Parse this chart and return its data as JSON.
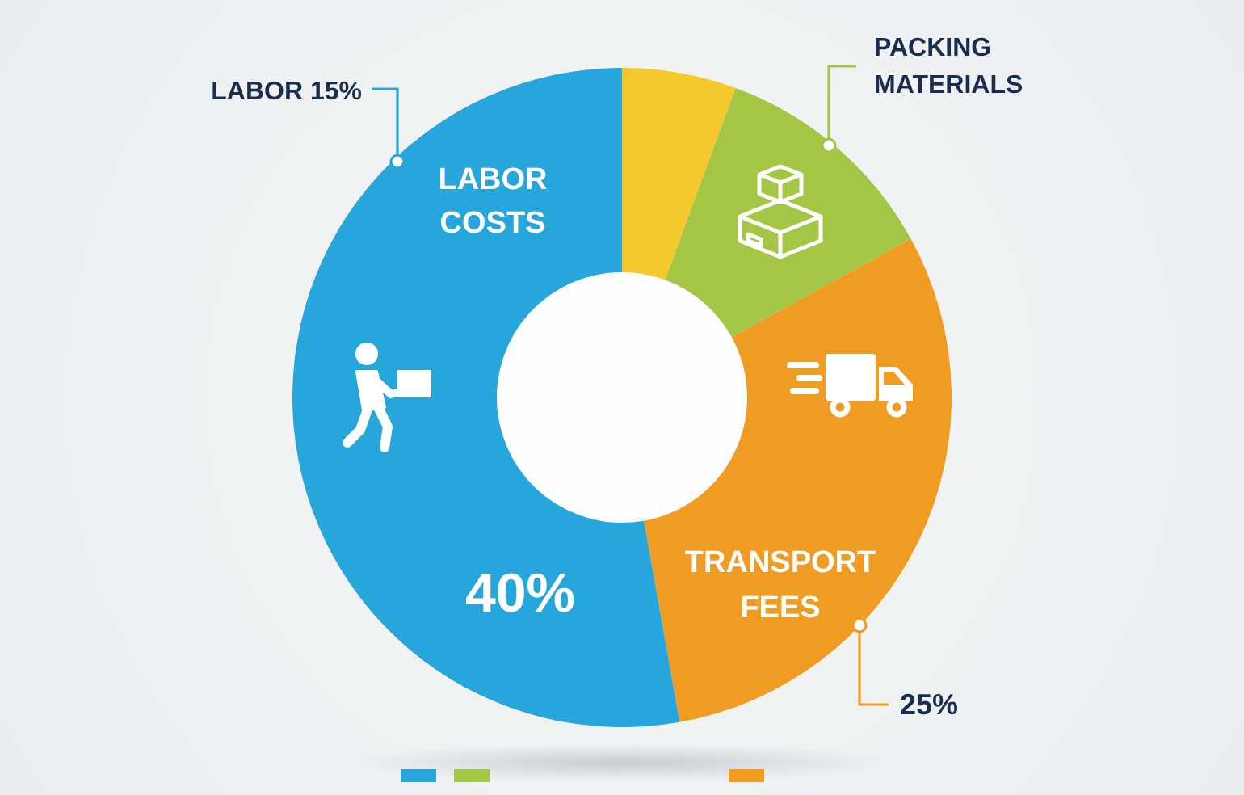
{
  "chart_data": {
    "type": "donut",
    "categories": [
      null,
      "PACKING MATERIALS",
      "TRANSPORT FEES",
      "LABOR COSTS"
    ],
    "values": [
      5.6,
      11.4,
      30.2,
      52.8
    ],
    "colors": [
      "#f5c92b",
      "#a3c645",
      "#f09b22",
      "#26a6db"
    ],
    "annotations": [
      "LABOR 15%",
      "40%",
      "25%"
    ]
  }
}
